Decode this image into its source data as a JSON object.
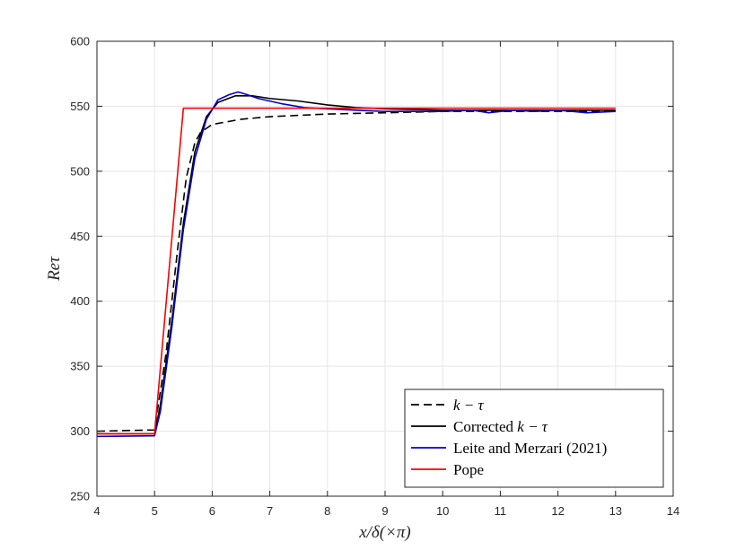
{
  "chart_data": {
    "type": "line",
    "xlabel": "x/δ(×π)",
    "ylabel": "Reτ",
    "xlim": [
      4,
      14
    ],
    "ylim": [
      250,
      600
    ],
    "xticks": [
      4,
      5,
      6,
      7,
      8,
      9,
      10,
      11,
      12,
      13,
      14
    ],
    "yticks": [
      250,
      300,
      350,
      400,
      450,
      500,
      550,
      600
    ],
    "grid": true,
    "legend_position": "bottom-right",
    "series": [
      {
        "name": "k − τ",
        "name_plain": "",
        "name_math": "k − τ",
        "color": "#000000",
        "dash": "dashed",
        "points": [
          [
            4,
            300
          ],
          [
            5,
            301
          ],
          [
            5.2,
            360
          ],
          [
            5.4,
            440
          ],
          [
            5.55,
            495
          ],
          [
            5.7,
            522
          ],
          [
            5.8,
            530
          ],
          [
            6,
            536
          ],
          [
            6.5,
            540
          ],
          [
            7,
            542
          ],
          [
            8,
            544
          ],
          [
            9,
            545
          ],
          [
            10,
            546
          ],
          [
            11,
            546
          ],
          [
            12,
            546
          ],
          [
            13,
            546
          ]
        ]
      },
      {
        "name": "Corrected k − τ",
        "name_plain": "Corrected ",
        "name_math": "k − τ",
        "color": "#000000",
        "dash": "solid",
        "points": [
          [
            4,
            298
          ],
          [
            5,
            298
          ],
          [
            5.1,
            320
          ],
          [
            5.3,
            385
          ],
          [
            5.5,
            460
          ],
          [
            5.7,
            515
          ],
          [
            5.9,
            542
          ],
          [
            6.1,
            553
          ],
          [
            6.4,
            558
          ],
          [
            6.7,
            558
          ],
          [
            7,
            556
          ],
          [
            7.5,
            554
          ],
          [
            8,
            551
          ],
          [
            8.5,
            549
          ],
          [
            9,
            548
          ],
          [
            10,
            547
          ],
          [
            11,
            547
          ],
          [
            12,
            547
          ],
          [
            13,
            547
          ]
        ]
      },
      {
        "name": "Leite and Merzari (2021)",
        "name_plain": "Leite and Merzari (2021)",
        "name_math": "",
        "color": "#0000cc",
        "dash": "solid",
        "points": [
          [
            4,
            296
          ],
          [
            5,
            296.5
          ],
          [
            5.1,
            315
          ],
          [
            5.3,
            380
          ],
          [
            5.5,
            455
          ],
          [
            5.7,
            510
          ],
          [
            5.9,
            540
          ],
          [
            6.1,
            555
          ],
          [
            6.3,
            559
          ],
          [
            6.45,
            561
          ],
          [
            6.6,
            559
          ],
          [
            6.8,
            556
          ],
          [
            7.2,
            552
          ],
          [
            7.6,
            549
          ],
          [
            8,
            548
          ],
          [
            8.5,
            547
          ],
          [
            9,
            546
          ],
          [
            9.5,
            546
          ],
          [
            10,
            546
          ],
          [
            10.5,
            547
          ],
          [
            10.8,
            545
          ],
          [
            11.2,
            547
          ],
          [
            11.6,
            546
          ],
          [
            12,
            547
          ],
          [
            12.5,
            545
          ],
          [
            13,
            546
          ]
        ]
      },
      {
        "name": "Pope",
        "name_plain": "Pope",
        "name_math": "",
        "color": "#ff0000",
        "dash": "solid",
        "points": [
          [
            4,
            298
          ],
          [
            5,
            298
          ],
          [
            5.5,
            548.5
          ],
          [
            13,
            548.5
          ]
        ]
      }
    ]
  }
}
